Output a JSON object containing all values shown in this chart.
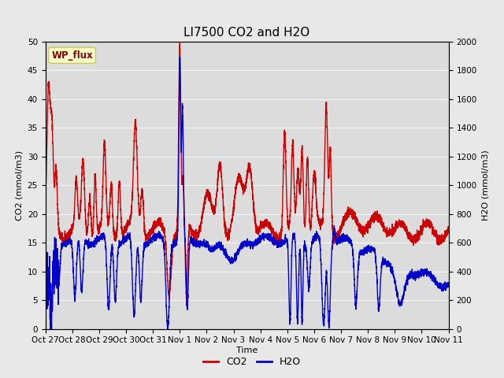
{
  "title": "LI7500 CO2 and H2O",
  "xlabel": "Time",
  "ylabel_left": "CO2 (mmol/m3)",
  "ylabel_right": "H2O (mmol/m3)",
  "annotation": "WP_flux",
  "ylim_left": [
    0,
    50
  ],
  "ylim_right": [
    0,
    2000
  ],
  "yticks_left": [
    0,
    5,
    10,
    15,
    20,
    25,
    30,
    35,
    40,
    45,
    50
  ],
  "yticks_right": [
    0,
    200,
    400,
    600,
    800,
    1000,
    1200,
    1400,
    1600,
    1800,
    2000
  ],
  "co2_color": "#CC0000",
  "h2o_color": "#0000CC",
  "bg_color": "#E8E8E8",
  "plot_bg_color": "#DCDCDC",
  "grid_color": "#F5F5F5",
  "annotation_bg": "#FFFFCC",
  "annotation_border": "#CCCC44",
  "xtick_labels": [
    "Oct 27",
    "Oct 28",
    "Oct 29",
    "Oct 30",
    "Oct 31",
    "Nov 1",
    "Nov 2",
    "Nov 3",
    "Nov 4",
    "Nov 5",
    "Nov 6",
    "Nov 7",
    "Nov 8",
    "Nov 9",
    "Nov 10",
    "Nov 11"
  ],
  "title_fontsize": 11,
  "label_fontsize": 8,
  "tick_fontsize": 7.5,
  "legend_fontsize": 9,
  "line_width": 1.0
}
